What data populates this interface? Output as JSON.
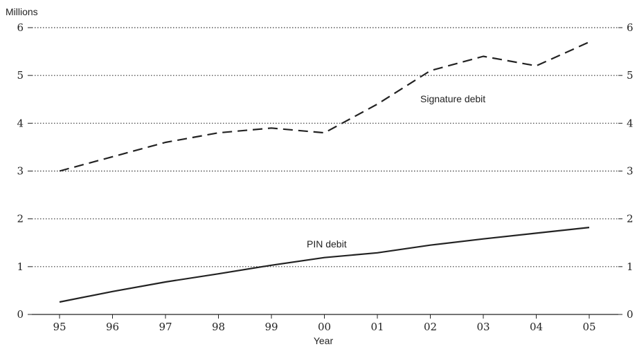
{
  "chart_data": {
    "type": "line",
    "title": "",
    "ylabel": "Millions",
    "xlabel": "Year",
    "categories": [
      "95",
      "96",
      "97",
      "98",
      "99",
      "00",
      "01",
      "02",
      "03",
      "04",
      "05"
    ],
    "ylim": [
      0,
      6
    ],
    "yticks": [
      "0",
      "1",
      "2",
      "3",
      "4",
      "5",
      "6"
    ],
    "grid": true,
    "series": [
      {
        "name": "Signature debit",
        "style": "dashed",
        "color": "#222222",
        "values": [
          3.0,
          3.3,
          3.6,
          3.8,
          3.9,
          3.8,
          4.4,
          5.1,
          5.4,
          5.2,
          5.7
        ]
      },
      {
        "name": "PIN debit",
        "style": "solid",
        "color": "#222222",
        "values": [
          0.26,
          0.48,
          0.68,
          0.85,
          1.03,
          1.19,
          1.29,
          1.45,
          1.58,
          1.7,
          1.82
        ]
      }
    ]
  }
}
